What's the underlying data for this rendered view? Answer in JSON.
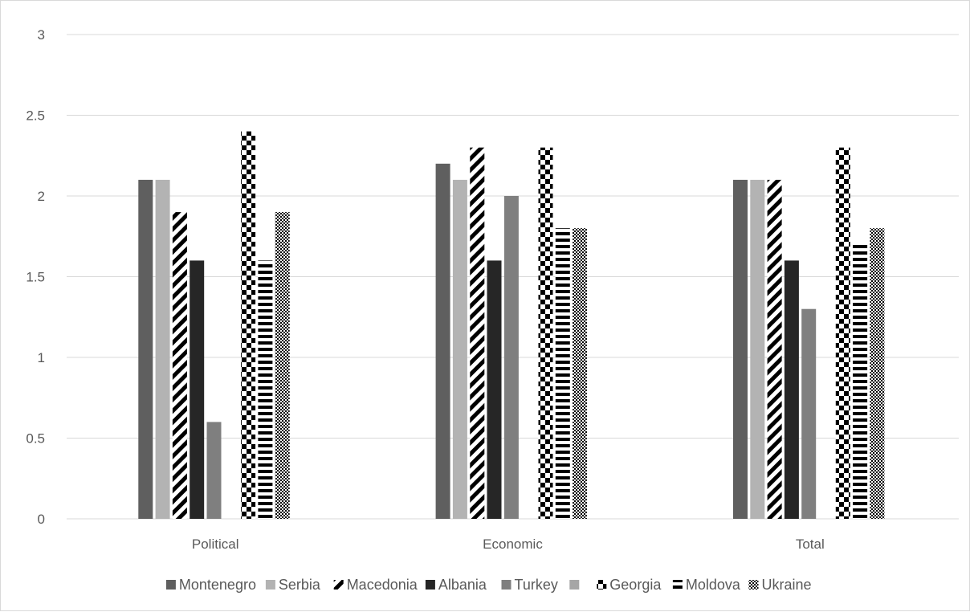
{
  "chart_data": {
    "type": "bar",
    "categories": [
      "Political",
      "Economic",
      "Total"
    ],
    "ylim": [
      0,
      3
    ],
    "yticks": [
      "0",
      "0.5",
      "1",
      "1.5",
      "2",
      "2.5",
      "3"
    ],
    "grid": true,
    "legend_position": "bottom",
    "series": [
      {
        "name": "Montenegro",
        "values": [
          2.1,
          2.2,
          2.1
        ],
        "color": "#5f5f5f",
        "pattern": "solid"
      },
      {
        "name": "Serbia",
        "values": [
          2.1,
          2.1,
          2.1
        ],
        "color": "#b3b3b3",
        "pattern": "solid"
      },
      {
        "name": "Macedonia",
        "values": [
          1.9,
          2.3,
          2.1
        ],
        "color": "#000000",
        "pattern": "diagonal-stripes"
      },
      {
        "name": "Albania",
        "values": [
          1.6,
          1.6,
          1.6
        ],
        "color": "#262626",
        "pattern": "solid"
      },
      {
        "name": "Turkey",
        "values": [
          0.6,
          2.0,
          1.3
        ],
        "color": "#7f7f7f",
        "pattern": "solid"
      },
      {
        "name": "",
        "values": [
          0,
          0,
          0
        ],
        "color": "#a6a6a6",
        "pattern": "solid"
      },
      {
        "name": "Georgia",
        "values": [
          2.4,
          2.3,
          2.3
        ],
        "color": "#000000",
        "pattern": "large-checker"
      },
      {
        "name": "Moldova",
        "values": [
          1.6,
          1.8,
          1.7
        ],
        "color": "#000000",
        "pattern": "horizontal-stripes"
      },
      {
        "name": "Ukraine",
        "values": [
          1.9,
          1.8,
          1.8
        ],
        "color": "#000000",
        "pattern": "small-checker"
      }
    ]
  }
}
